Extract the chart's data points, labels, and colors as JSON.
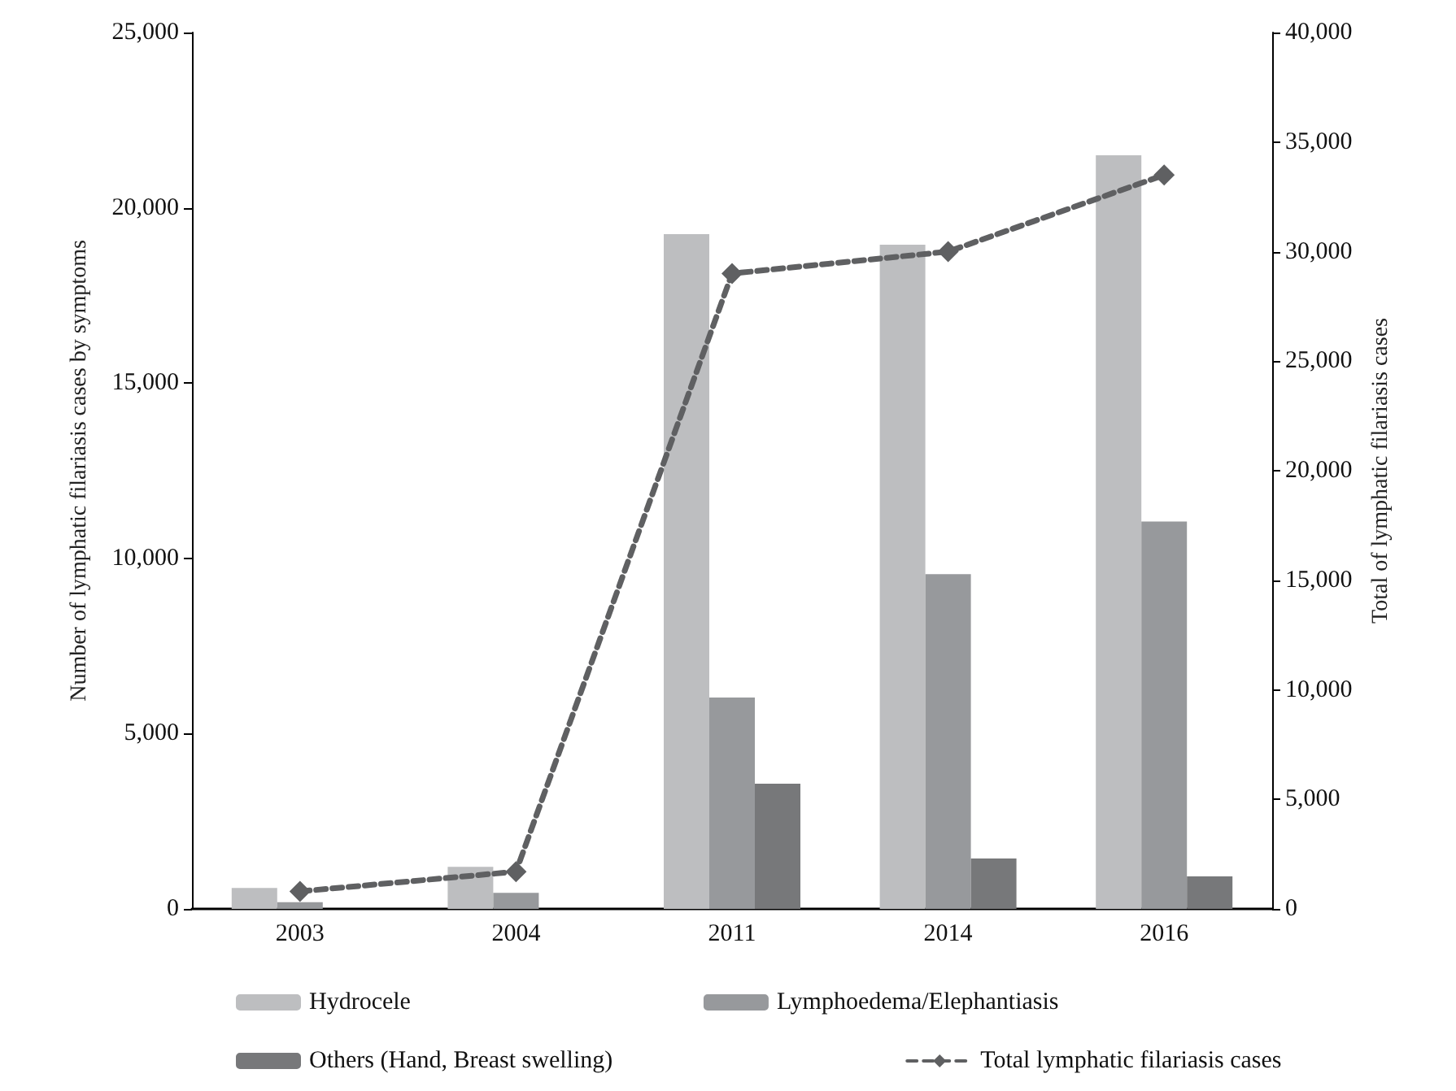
{
  "chart_data": {
    "type": "bar",
    "categories": [
      "2003",
      "2004",
      "2011",
      "2014",
      "2016"
    ],
    "ylabel": "Number of lymphatic filariasis cases by symptoms",
    "y2label": "Total of lymphatic filariasis cases",
    "series": [
      {
        "name": "Hydrocele",
        "color": "#bdbec0",
        "values": [
          600,
          1200,
          19250,
          18950,
          21500
        ]
      },
      {
        "name": "Lymphoedema/Elephantiasis",
        "color": "#97999c",
        "values": [
          190,
          460,
          6030,
          9550,
          11050
        ]
      },
      {
        "name": "Others (Hand, Breast swelling)",
        "color": "#77787a",
        "values": [
          null,
          null,
          3570,
          1440,
          930
        ]
      },
      {
        "name": "Total lymphatic filariasis cases",
        "type": "line",
        "axis": "y2",
        "color": "#5f6062",
        "marker": "diamond",
        "line_style": "dashed",
        "values": [
          800,
          1700,
          29000,
          30000,
          33500
        ]
      }
    ],
    "ylim": [
      0,
      25000
    ],
    "yticks": [
      0,
      {
        "value": 5000,
        "label": "5,000"
      },
      {
        "value": 10000,
        "label": "10,000"
      },
      {
        "value": 15000,
        "label": "15,000"
      },
      {
        "value": 20000,
        "label": "20,000"
      },
      {
        "value": 25000,
        "label": "25,000"
      }
    ],
    "y2lim": [
      0,
      40000
    ],
    "y2ticks": [
      0,
      {
        "value": 5000,
        "label": "5,000"
      },
      {
        "value": 10000,
        "label": "10,000"
      },
      {
        "value": 15000,
        "label": "15,000"
      },
      {
        "value": 20000,
        "label": "20,000"
      },
      {
        "value": 25000,
        "label": "25,000"
      },
      {
        "value": 30000,
        "label": "30,000"
      },
      {
        "value": 35000,
        "label": "35,000"
      },
      {
        "value": 40000,
        "label": "40,000"
      }
    ],
    "grid": false,
    "legend": "bottom"
  }
}
